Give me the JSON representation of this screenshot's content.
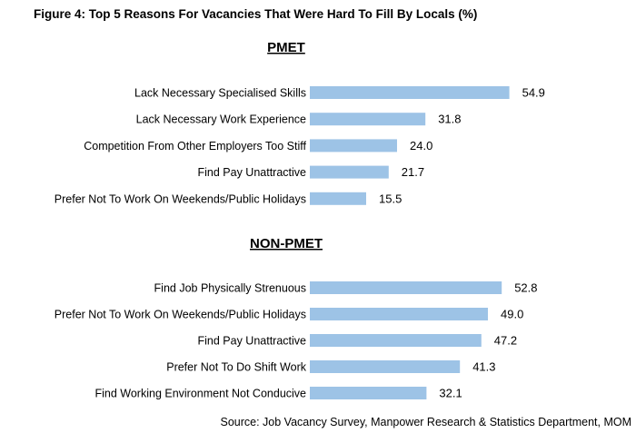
{
  "title": "Figure 4: Top 5 Reasons For Vacancies That Were Hard To Fill By Locals (%)",
  "source": "Source: Job Vacancy Survey, Manpower Research & Statistics Department, MOM",
  "bar_color": "#9dc3e6",
  "chart_data": [
    {
      "type": "bar",
      "orientation": "horizontal",
      "title": "PMET",
      "categories": [
        "Lack Necessary Specialised Skills",
        "Lack Necessary Work Experience",
        "Competition From Other Employers Too Stiff",
        "Find Pay Unattractive",
        "Prefer Not To Work On Weekends/Public Holidays"
      ],
      "values": [
        54.9,
        31.8,
        24.0,
        21.7,
        15.5
      ],
      "xlim": [
        0,
        60
      ]
    },
    {
      "type": "bar",
      "orientation": "horizontal",
      "title": "NON-PMET",
      "categories": [
        "Find Job Physically Strenuous",
        "Prefer Not To Work On Weekends/Public Holidays",
        "Find Pay Unattractive",
        "Prefer Not To Do Shift Work",
        "Find Working Environment Not Conducive"
      ],
      "values": [
        52.8,
        49.0,
        47.2,
        41.3,
        32.1
      ],
      "xlim": [
        0,
        60
      ]
    }
  ]
}
